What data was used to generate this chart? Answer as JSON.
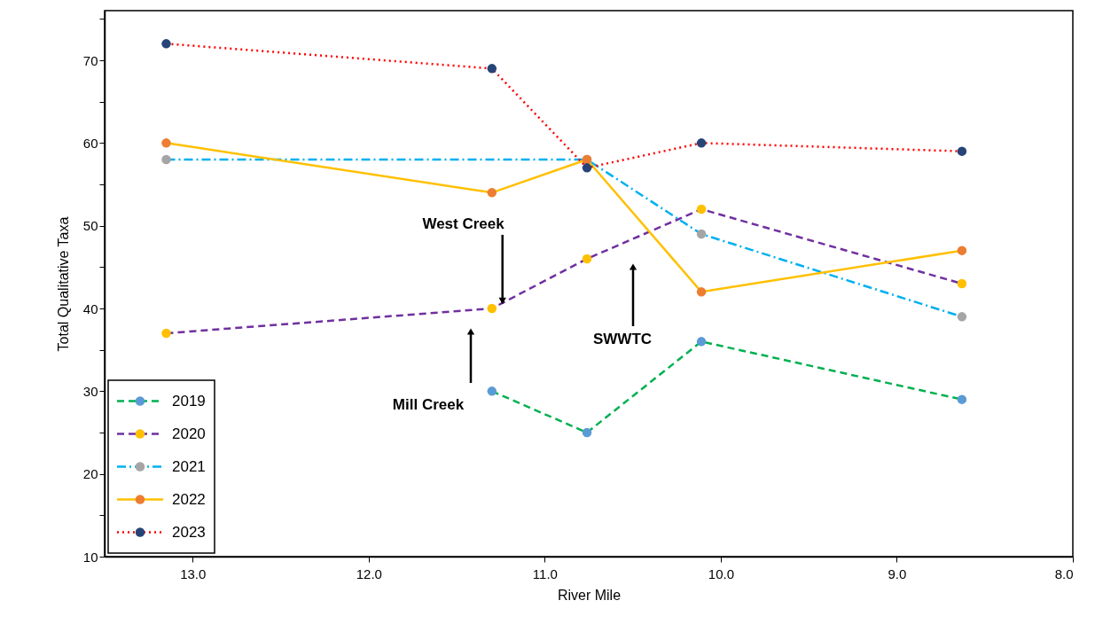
{
  "chart_data": {
    "type": "line",
    "xlabel": "River Mile",
    "ylabel": "Total Qualitative Taxa",
    "x": [
      13.15,
      11.3,
      10.76,
      10.11,
      8.63
    ],
    "xlim": [
      13.5,
      8.0
    ],
    "xticks": [
      {
        "value": 13,
        "label": "13.0"
      },
      {
        "value": 12,
        "label": "12.0"
      },
      {
        "value": 11,
        "label": "11.0"
      },
      {
        "value": 10,
        "label": "10.0"
      },
      {
        "value": 9,
        "label": "9.0"
      },
      {
        "value": 8,
        "label": "8.0"
      }
    ],
    "ylim": [
      10,
      76
    ],
    "yticks": [
      10,
      {
        "value": 15,
        "label": null
      },
      20,
      {
        "value": 25,
        "label": null
      },
      30,
      {
        "value": 35,
        "label": null
      },
      40,
      {
        "value": 45,
        "label": null
      },
      50,
      {
        "value": 55,
        "label": null
      },
      60,
      {
        "value": 65,
        "label": null
      },
      70,
      {
        "value": 75,
        "label": null
      }
    ],
    "series": [
      {
        "name": "2019",
        "color": "#00b050",
        "colors": [
          "#5b9bd5",
          "#5b9bd5",
          "#5b9bd5",
          "#5b9bd5",
          "#5b9bd5"
        ],
        "line_style": "dashed",
        "values": [
          null,
          30,
          25,
          36,
          29
        ]
      },
      {
        "name": "2020",
        "color": "#7030a0",
        "colors": [
          "#ffc000",
          "#ffc000",
          "#ffc000",
          "#ffc000",
          "#ffc000"
        ],
        "line_style": "dashed",
        "values": [
          37,
          40,
          46,
          52,
          43
        ]
      },
      {
        "name": "2021",
        "color": "#00b0f0",
        "colors": [
          "#a5a5a5",
          "#a5a5a5",
          "#a5a5a5",
          "#a5a5a5",
          "#a5a5a5"
        ],
        "line_style": "dashdot",
        "values": [
          58,
          null,
          58,
          49,
          39
        ]
      },
      {
        "name": "2022",
        "color": "#ffc000",
        "colors": [
          "#ed7d31",
          "#ed7d31",
          "#ed7d31",
          "#ed7d31",
          "#ed7d31"
        ],
        "line_style": "solid",
        "values": [
          60,
          54,
          58,
          42,
          47
        ]
      },
      {
        "name": "2023",
        "color": "#ff0000",
        "colors": [
          "#264478",
          "#264478",
          "#264478",
          "#264478",
          "#264478"
        ],
        "line_style": "dotted",
        "values": [
          72,
          69,
          57,
          60,
          59
        ]
      }
    ],
    "marker": "circle",
    "legend": "bottom left",
    "grid": false,
    "annotations": [
      {
        "text": "West Creek",
        "x": 11.24,
        "y": 40.6
      },
      "Mill Creek",
      "SWWTC"
    ]
  }
}
